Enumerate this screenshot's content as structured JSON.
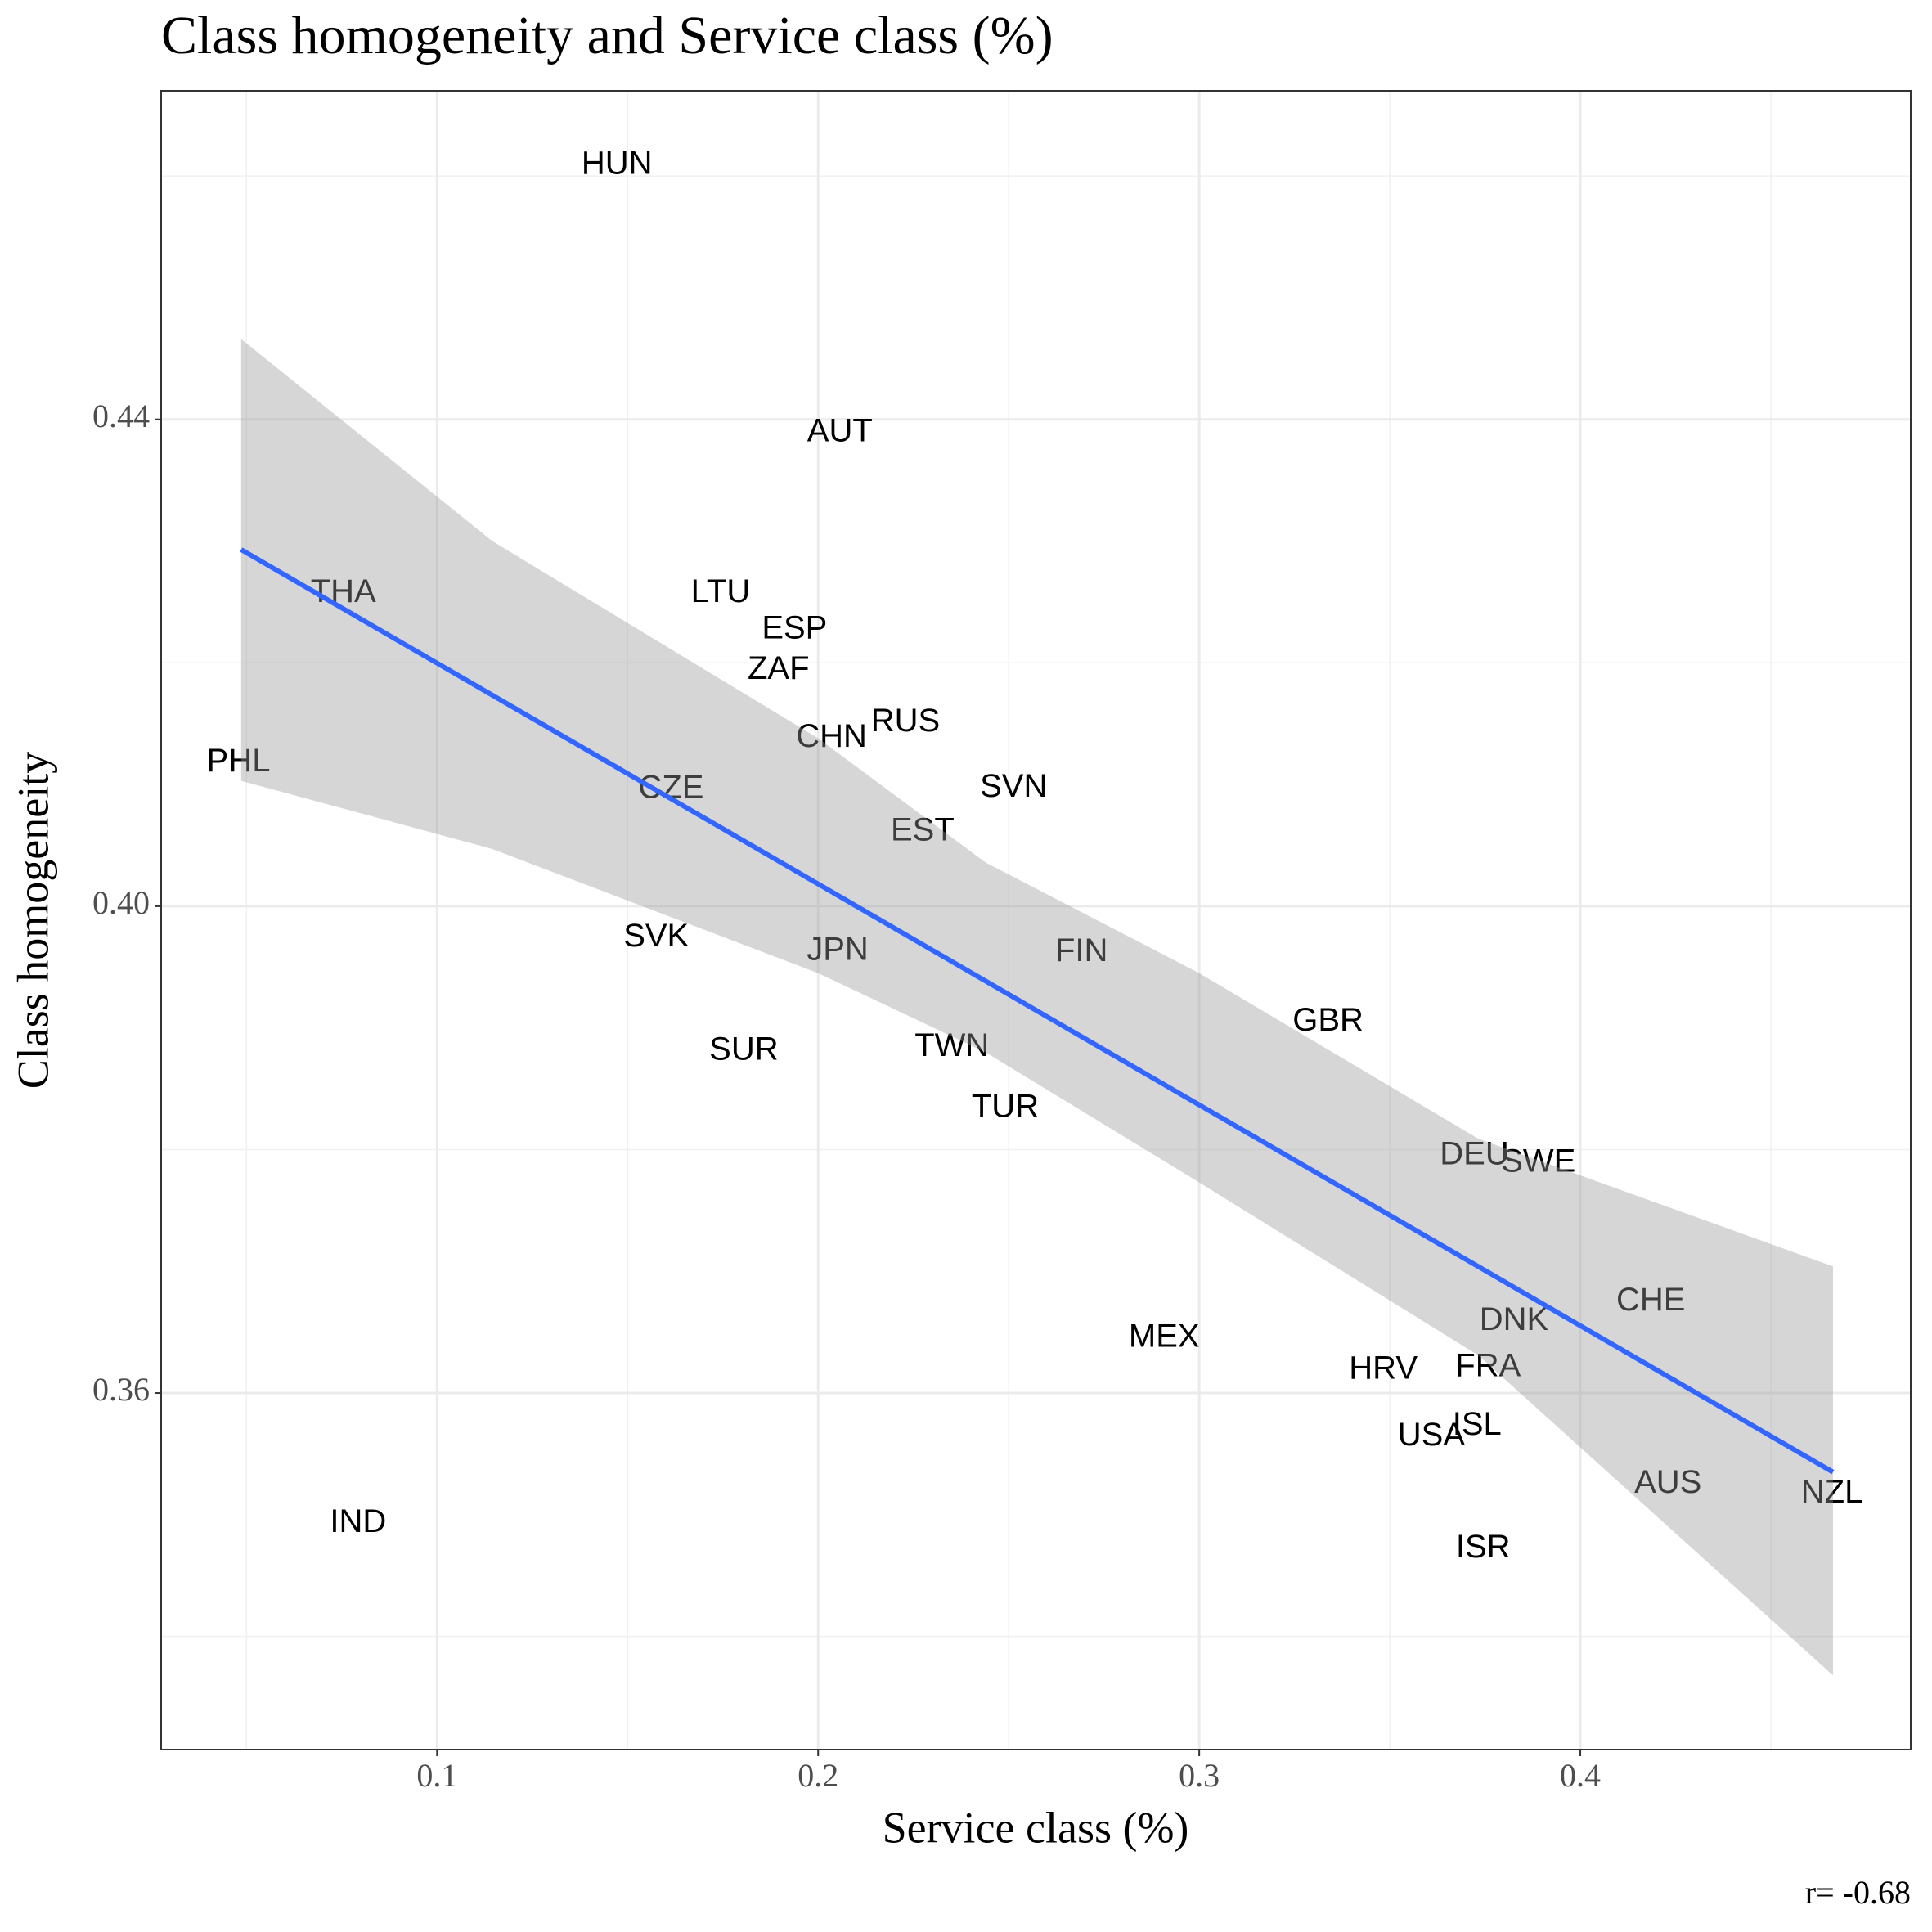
{
  "chart_data": {
    "type": "scatter",
    "title": "Class homogeneity and Service class (%)",
    "x_label": "Service class (%)",
    "y_label": "Class homogeneity",
    "annotation": "r= -0.68",
    "labels": [
      "HUN",
      "AUT",
      "THA",
      "LTU",
      "ESP",
      "ZAF",
      "RUS",
      "CHN",
      "PHL",
      "CZE",
      "SVN",
      "EST",
      "SVK",
      "JPN",
      "FIN",
      "GBR",
      "TWN",
      "SUR",
      "TUR",
      "DEU",
      "SWE",
      "CHE",
      "DNK",
      "MEX",
      "HRV",
      "FRA",
      "ISL",
      "USA",
      "AUS",
      "NZL",
      "IND",
      "ISR"
    ],
    "x": [
      0.1472,
      0.2057,
      0.0754,
      0.1744,
      0.1938,
      0.1896,
      0.2229,
      0.2035,
      0.0479,
      0.1614,
      0.2513,
      0.2274,
      0.1575,
      0.2051,
      0.2691,
      0.3338,
      0.2351,
      0.1805,
      0.2491,
      0.3722,
      0.389,
      0.4185,
      0.3826,
      0.2908,
      0.3483,
      0.3758,
      0.3729,
      0.3609,
      0.423,
      0.466,
      0.0793,
      0.3745
    ],
    "values": [
      0.4609,
      0.4389,
      0.4257,
      0.4257,
      0.4227,
      0.4194,
      0.4151,
      0.4138,
      0.4118,
      0.4096,
      0.4097,
      0.4061,
      0.3974,
      0.3963,
      0.3962,
      0.3905,
      0.3884,
      0.3881,
      0.3834,
      0.3795,
      0.3789,
      0.3675,
      0.3659,
      0.3645,
      0.3619,
      0.3621,
      0.3573,
      0.3564,
      0.3525,
      0.3517,
      0.3493,
      0.3472
    ],
    "fit": {
      "x": [
        0.0486,
        0.4663
      ],
      "y": [
        0.4293,
        0.3535
      ],
      "color": "#3366ff"
    },
    "band": {
      "x": [
        0.0486,
        0.1145,
        0.2,
        0.2439,
        0.3,
        0.3732,
        0.4663
      ],
      "upper": [
        0.4466,
        0.43,
        0.4138,
        0.4036,
        0.3945,
        0.3809,
        0.3704
      ],
      "lower": [
        0.4103,
        0.4047,
        0.3945,
        0.388,
        0.3773,
        0.3631,
        0.3368
      ],
      "color": "#999999"
    },
    "xlim": [
      0.0276,
      0.4867
    ],
    "ylim": [
      0.3307,
      0.467
    ],
    "xticks": [
      0.1,
      0.2,
      0.3,
      0.4
    ],
    "yticks": [
      0.36,
      {
        "value": 0.4,
        "label": "0.40"
      },
      0.44
    ],
    "grid": true
  }
}
